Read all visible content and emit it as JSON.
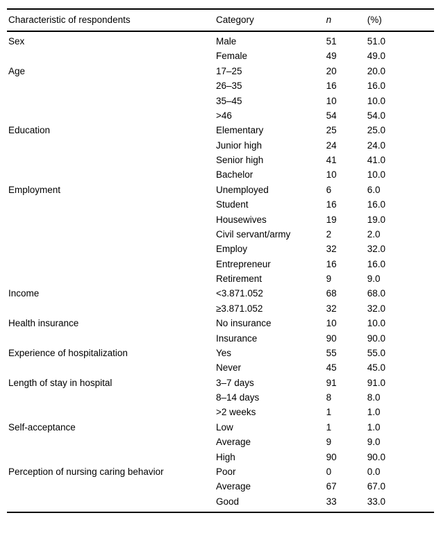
{
  "table": {
    "headers": {
      "characteristic": "Characteristic of respondents",
      "category": "Category",
      "n": "n",
      "percent": "(%)"
    },
    "groups": [
      {
        "characteristic": "Sex",
        "rows": [
          {
            "category": "Male",
            "n": "51",
            "percent": "51.0"
          },
          {
            "category": "Female",
            "n": "49",
            "percent": "49.0"
          }
        ]
      },
      {
        "characteristic": "Age",
        "rows": [
          {
            "category": "17–25",
            "n": "20",
            "percent": "20.0"
          },
          {
            "category": "26–35",
            "n": "16",
            "percent": "16.0"
          },
          {
            "category": "35–45",
            "n": "10",
            "percent": "10.0"
          },
          {
            "category": ">46",
            "n": "54",
            "percent": "54.0"
          }
        ]
      },
      {
        "characteristic": "Education",
        "rows": [
          {
            "category": "Elementary",
            "n": "25",
            "percent": "25.0"
          },
          {
            "category": "Junior high",
            "n": "24",
            "percent": "24.0"
          },
          {
            "category": "Senior high",
            "n": "41",
            "percent": "41.0"
          },
          {
            "category": "Bachelor",
            "n": "10",
            "percent": "10.0"
          }
        ]
      },
      {
        "characteristic": "Employment",
        "rows": [
          {
            "category": "Unemployed",
            "n": "6",
            "percent": "6.0"
          },
          {
            "category": "Student",
            "n": "16",
            "percent": "16.0"
          },
          {
            "category": "Housewives",
            "n": "19",
            "percent": "19.0"
          },
          {
            "category": "Civil servant/army",
            "n": "2",
            "percent": "2.0"
          },
          {
            "category": "Employ",
            "n": "32",
            "percent": "32.0"
          },
          {
            "category": "Entrepreneur",
            "n": "16",
            "percent": "16.0"
          },
          {
            "category": "Retirement",
            "n": "9",
            "percent": "9.0"
          }
        ]
      },
      {
        "characteristic": "Income",
        "rows": [
          {
            "category": "<3.871.052",
            "n": "68",
            "percent": "68.0"
          },
          {
            "category": "≥3.871.052",
            "n": "32",
            "percent": "32.0"
          }
        ]
      },
      {
        "characteristic": "Health insurance",
        "rows": [
          {
            "category": "No insurance",
            "n": "10",
            "percent": "10.0"
          },
          {
            "category": "Insurance",
            "n": "90",
            "percent": "90.0"
          }
        ]
      },
      {
        "characteristic": "Experience of hospitalization",
        "rows": [
          {
            "category": "Yes",
            "n": "55",
            "percent": "55.0"
          },
          {
            "category": "Never",
            "n": "45",
            "percent": "45.0"
          }
        ]
      },
      {
        "characteristic": "Length of stay in hospital",
        "rows": [
          {
            "category": "3–7 days",
            "n": "91",
            "percent": "91.0"
          },
          {
            "category": "8–14 days",
            "n": "8",
            "percent": "8.0"
          },
          {
            "category": ">2 weeks",
            "n": "1",
            "percent": "1.0"
          }
        ]
      },
      {
        "characteristic": "Self-acceptance",
        "rows": [
          {
            "category": "Low",
            "n": "1",
            "percent": "1.0"
          },
          {
            "category": "Average",
            "n": "9",
            "percent": "9.0"
          },
          {
            "category": "High",
            "n": "90",
            "percent": "90.0"
          }
        ]
      },
      {
        "characteristic": "Perception of nursing caring behavior",
        "rows": [
          {
            "category": "Poor",
            "n": "0",
            "percent": "0.0"
          },
          {
            "category": "Average",
            "n": "67",
            "percent": "67.0"
          },
          {
            "category": "Good",
            "n": "33",
            "percent": "33.0"
          }
        ]
      }
    ]
  },
  "chart_data": {
    "type": "table",
    "title": "Characteristic of respondents",
    "columns": [
      "Characteristic of respondents",
      "Category",
      "n",
      "(%)"
    ]
  }
}
